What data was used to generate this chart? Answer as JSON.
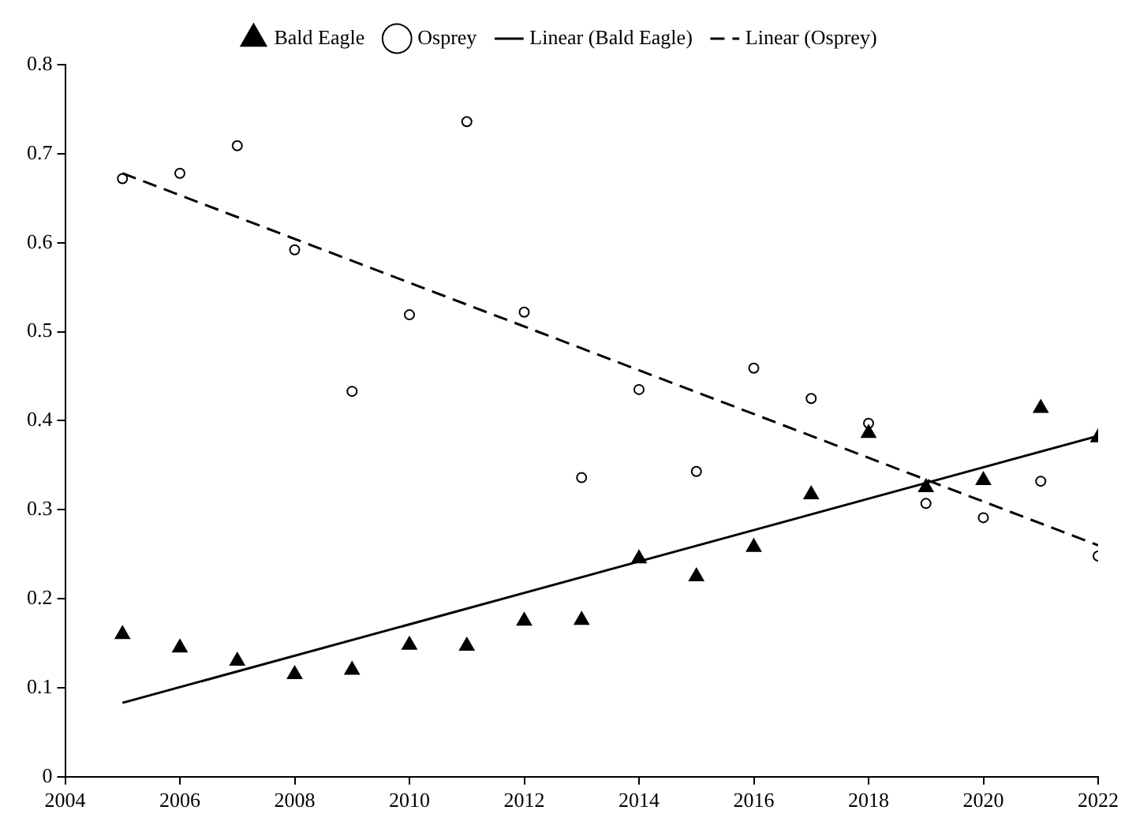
{
  "chart_data": {
    "type": "scatter",
    "legend": "top",
    "grid": false,
    "xlim": [
      2004,
      2022
    ],
    "xticks": [
      2004,
      2006,
      2008,
      2010,
      2012,
      2014,
      2016,
      2018,
      2020,
      2022
    ],
    "ylim": [
      0,
      0.8
    ],
    "yticks": [
      0,
      0.1,
      0.2,
      0.3,
      0.4,
      0.5,
      0.6,
      0.7,
      0.8
    ],
    "series": [
      {
        "name": "Bald Eagle",
        "type": "scatter",
        "marker": "triangle",
        "color": "#000000",
        "x": [
          2005,
          2006,
          2007,
          2008,
          2009,
          2010,
          2011,
          2012,
          2013,
          2014,
          2015,
          2016,
          2017,
          2018,
          2019,
          2020,
          2021,
          2022
        ],
        "values": [
          0.16,
          0.145,
          0.13,
          0.115,
          0.12,
          0.148,
          0.147,
          0.175,
          0.176,
          0.245,
          0.225,
          0.258,
          0.317,
          0.386,
          0.325,
          0.333,
          0.414,
          0.381
        ]
      },
      {
        "name": "Osprey",
        "type": "scatter",
        "marker": "circle",
        "color": "#000000",
        "x": [
          2005,
          2006,
          2007,
          2008,
          2009,
          2010,
          2011,
          2012,
          2013,
          2014,
          2015,
          2016,
          2017,
          2018,
          2019,
          2020,
          2021,
          2022
        ],
        "values": [
          0.672,
          0.678,
          0.709,
          0.592,
          0.433,
          0.519,
          0.736,
          0.522,
          0.336,
          0.435,
          0.343,
          0.459,
          0.425,
          0.397,
          0.307,
          0.291,
          0.332,
          0.248
        ]
      },
      {
        "name": "Linear (Bald Eagle)",
        "type": "line",
        "marker": "none",
        "line_style": "solid",
        "color": "#000000",
        "x": [
          2005,
          2022
        ],
        "values": [
          0.083,
          0.383
        ]
      },
      {
        "name": "Linear (Osprey)",
        "type": "line",
        "marker": "none",
        "line_style": "dashed",
        "color": "#000000",
        "x": [
          2005,
          2022
        ],
        "values": [
          0.678,
          0.26
        ]
      }
    ]
  }
}
